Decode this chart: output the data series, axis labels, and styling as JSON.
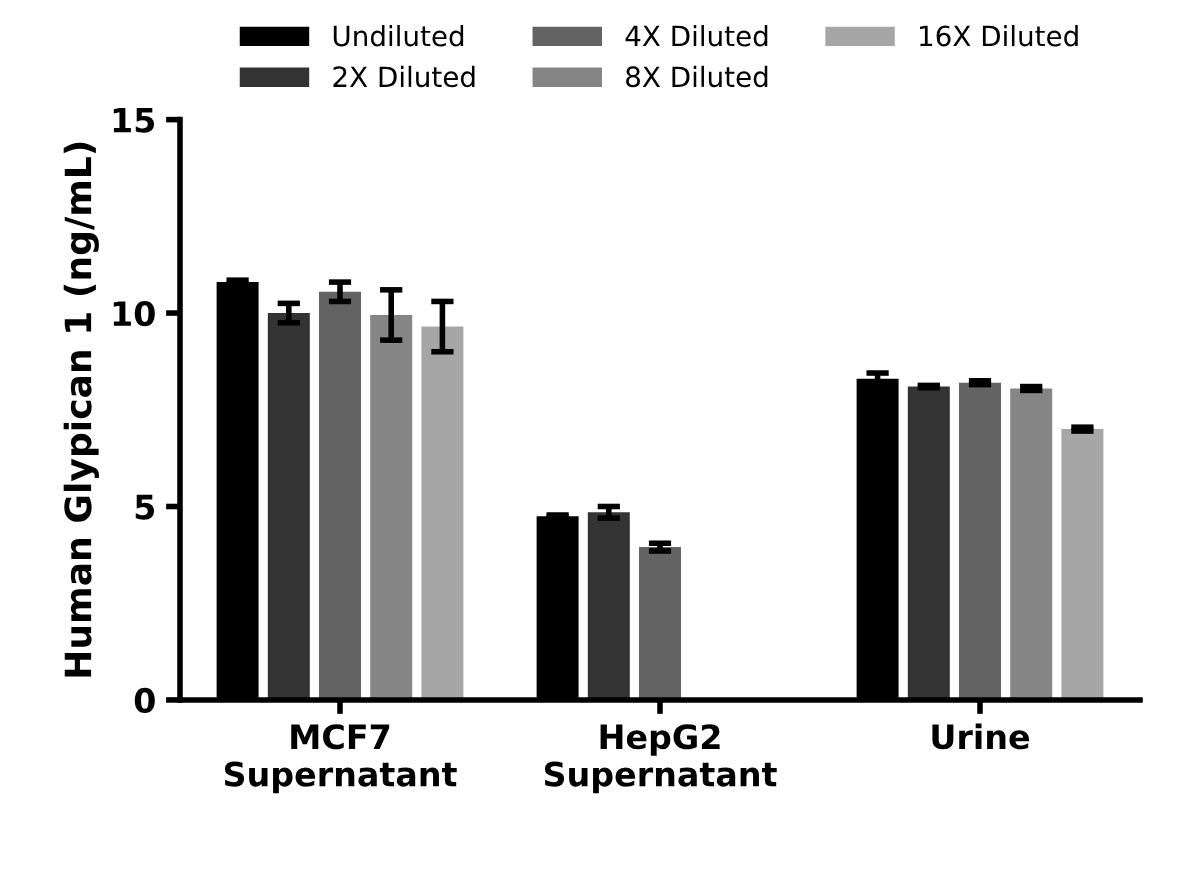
{
  "chart_data": {
    "type": "bar",
    "ylabel": "Human Glypican 1 (ng/mL)",
    "categories": [
      "MCF7\nSupernatant",
      "HepG2\nSupernatant",
      "Urine"
    ],
    "series": [
      {
        "name": "Undiluted",
        "color": "#000000",
        "values": [
          10.8,
          4.75,
          8.3
        ],
        "errors": [
          0.05,
          0.03,
          0.15
        ]
      },
      {
        "name": "2X Diluted",
        "color": "#333333",
        "values": [
          10.0,
          4.85,
          8.1
        ],
        "errors": [
          0.25,
          0.15,
          0.03
        ]
      },
      {
        "name": "4X Diluted",
        "color": "#636363",
        "values": [
          10.55,
          3.95,
          8.2
        ],
        "errors": [
          0.25,
          0.1,
          0.05
        ]
      },
      {
        "name": "8X Diluted",
        "color": "#858585",
        "values": [
          9.95,
          null,
          8.05
        ],
        "errors": [
          0.65,
          null,
          0.05
        ]
      },
      {
        "name": "16X Diluted",
        "color": "#a6a6a6",
        "values": [
          9.65,
          null,
          7.0
        ],
        "errors": [
          0.65,
          null,
          0.05
        ]
      }
    ],
    "ylim": [
      0,
      15
    ],
    "yticks": [
      0,
      5,
      10,
      15
    ],
    "legend": "top",
    "grid": false
  }
}
